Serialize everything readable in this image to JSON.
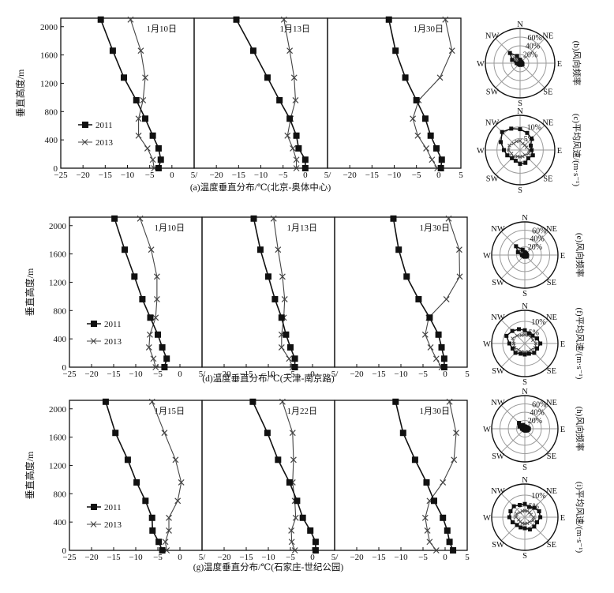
{
  "chart_data": {
    "type": "line",
    "heights_m": [
      0,
      120,
      280,
      460,
      700,
      960,
      1280,
      1660,
      2100
    ],
    "ylabel": "垂直高度/m",
    "yticks": [
      0,
      400,
      800,
      1200,
      1600,
      2000
    ],
    "xticks": [
      "−25",
      "−20",
      "−15",
      "−10",
      "−5",
      "0",
      "5/"
    ],
    "xticks_last": [
      "−25",
      "−20",
      "−15",
      "−10",
      "−5",
      "0",
      "5"
    ],
    "xlim": [
      -25,
      5
    ],
    "ylim": [
      0,
      2120
    ],
    "legend": [
      "2011",
      "2013"
    ],
    "colors": {
      "s2011": "#111111",
      "s2013": "#444444",
      "grid": "#9a9a9a"
    },
    "rows": [
      {
        "caption": "(a)温度垂直分布/℃(北京-奥体中心)",
        "panels": [
          {
            "label": "1月10日",
            "s2011": [
              -3,
              -2.5,
              -3,
              -4.3,
              -6,
              -8,
              -10.8,
              -13.3,
              -16
            ],
            "s2013": [
              -4,
              -4.3,
              -5.5,
              -7.5,
              -7.5,
              -6.5,
              -6,
              -7,
              -9.3
            ]
          },
          {
            "label": "1月13日",
            "s2011": [
              0,
              0,
              -1.5,
              -2,
              -3.5,
              -5.8,
              -8.5,
              -11.7,
              -15.5
            ],
            "s2013": [
              -2,
              -2,
              -2.8,
              -4,
              -3.3,
              -2.2,
              -2.5,
              -3.5,
              -4.8
            ]
          },
          {
            "label": "1月30日",
            "s2011": [
              0.5,
              0.7,
              -0.5,
              -1.8,
              -3,
              -5,
              -7.5,
              -9.7,
              -11.2
            ],
            "s2013": [
              -0.3,
              -1.5,
              -2.8,
              -4.7,
              -5.8,
              -4.5,
              0.3,
              3,
              1.5
            ]
          }
        ],
        "roses": [
          {
            "caption": "(b)风向频率",
            "rings": [
              "20%",
              "40%",
              "60%"
            ],
            "max": 80,
            "s2011": [
              8,
              4,
              3,
              3,
              4,
              6,
              5,
              4,
              4,
              3,
              3,
              4,
              8,
              20,
              33,
              18
            ],
            "s2013": [
              6,
              5,
              4,
              5,
              6,
              7,
              6,
              5,
              5,
              4,
              4,
              5,
              7,
              12,
              15,
              10
            ]
          },
          {
            "caption": "(c)平均风速/(m·s⁻¹)",
            "rings": [
              "5%",
              "10%"
            ],
            "max": 15,
            "s2011": [
              9,
              8,
              7,
              5,
              5,
              6,
              5,
              6,
              6,
              5,
              5,
              6,
              7,
              9,
              11,
              10
            ],
            "s2013": [
              4,
              3,
              3,
              3,
              4,
              4,
              3,
              3,
              3,
              3,
              4,
              4,
              5,
              5,
              4,
              4
            ]
          }
        ]
      },
      {
        "caption": "(d)温度垂直分布/℃(天津-南京路)",
        "panels": [
          {
            "label": "1月10日",
            "s2011": [
              -3.5,
              -3,
              -4,
              -5,
              -6.7,
              -8.5,
              -10.3,
              -12.5,
              -14.8
            ],
            "s2013": [
              -5.5,
              -6,
              -7,
              -6.8,
              -5.5,
              -5.2,
              -5.2,
              -6.5,
              -9
            ]
          },
          {
            "label": "1月13日",
            "s2011": [
              -4,
              -4,
              -5,
              -6,
              -7,
              -8.5,
              -10,
              -11.8,
              -13.3
            ],
            "s2013": [
              -4.5,
              -5.3,
              -7,
              -7,
              -6.5,
              -6.3,
              -6.8,
              -7.8,
              -8.8
            ]
          },
          {
            "label": "1月30日",
            "s2011": [
              -0.2,
              -0.2,
              -0.8,
              -1.5,
              -3.5,
              -6,
              -8.7,
              -10.5,
              -11.7
            ],
            "s2013": [
              -0.8,
              -2,
              -3.3,
              -4.5,
              -3.7,
              0.3,
              3.3,
              3.2,
              0.8
            ]
          }
        ],
        "roses": [
          {
            "caption": "(e)风向频率",
            "rings": [
              "20%",
              "40%",
              "60%"
            ],
            "max": 80,
            "s2011": [
              7,
              5,
              4,
              4,
              5,
              6,
              5,
              4,
              4,
              3,
              3,
              4,
              7,
              18,
              30,
              14
            ],
            "s2013": [
              6,
              5,
              5,
              5,
              6,
              6,
              6,
              5,
              5,
              4,
              4,
              5,
              6,
              10,
              12,
              8
            ]
          },
          {
            "caption": "(f)平均风速/(m·s⁻¹)",
            "rings": [
              "5%",
              "10%"
            ],
            "max": 15,
            "s2011": [
              6,
              5,
              5,
              6,
              7,
              6,
              6,
              5,
              5,
              5,
              6,
              6,
              7,
              9,
              8,
              7
            ],
            "s2013": [
              4,
              4,
              4,
              4,
              5,
              5,
              4,
              4,
              4,
              4,
              4,
              5,
              5,
              6,
              5,
              4
            ]
          }
        ]
      },
      {
        "caption": "(g)温度垂直分布/℃(石家庄-世纪公园)",
        "panels": [
          {
            "label": "1月15日",
            "s2011": [
              -4,
              -4.8,
              -6.2,
              -6.3,
              -7.8,
              -9.8,
              -11.8,
              -14.6,
              -16.8
            ],
            "s2013": [
              -3,
              -3.3,
              -2.5,
              -2.5,
              -0.5,
              0.3,
              -1,
              -3.5,
              -6.3
            ]
          },
          {
            "label": "1月22日",
            "s2011": [
              0.7,
              0.7,
              -0.5,
              -2.2,
              -3.5,
              -5.2,
              -7.8,
              -10.2,
              -13.5
            ],
            "s2013": [
              -4,
              -4.7,
              -4.8,
              -3.8,
              -4,
              -4.5,
              -4.3,
              -4.5,
              -6.8
            ]
          },
          {
            "label": "1月30日",
            "s2011": [
              1.8,
              1,
              0.5,
              -0.5,
              -2.5,
              -4.2,
              -6.8,
              -9.5,
              -11.2
            ],
            "s2013": [
              -2,
              -3.5,
              -4,
              -4.5,
              -3.5,
              -0.5,
              2,
              2.5,
              1
            ]
          }
        ],
        "roses": [
          {
            "caption": "(h)风向频率",
            "rings": [
              "20%",
              "40%",
              "60%"
            ],
            "max": 80,
            "s2011": [
              6,
              5,
              5,
              8,
              10,
              8,
              6,
              5,
              4,
              3,
              3,
              4,
              7,
              14,
              20,
              10
            ],
            "s2013": [
              5,
              5,
              5,
              7,
              8,
              7,
              5,
              5,
              4,
              4,
              4,
              5,
              6,
              9,
              10,
              7
            ]
          },
          {
            "caption": "(i)平均风速/(m·s⁻¹)",
            "rings": [
              "5%",
              "10%"
            ],
            "max": 15,
            "s2011": [
              6,
              5,
              6,
              7,
              7,
              6,
              6,
              6,
              5,
              5,
              5,
              6,
              7,
              7,
              7,
              6
            ],
            "s2013": [
              3,
              3,
              3,
              3,
              4,
              4,
              3,
              3,
              3,
              3,
              3,
              3,
              4,
              4,
              3,
              3
            ]
          }
        ]
      }
    ],
    "compass": [
      "N",
      "NE",
      "E",
      "SE",
      "S",
      "SW",
      "W",
      "NW"
    ]
  }
}
